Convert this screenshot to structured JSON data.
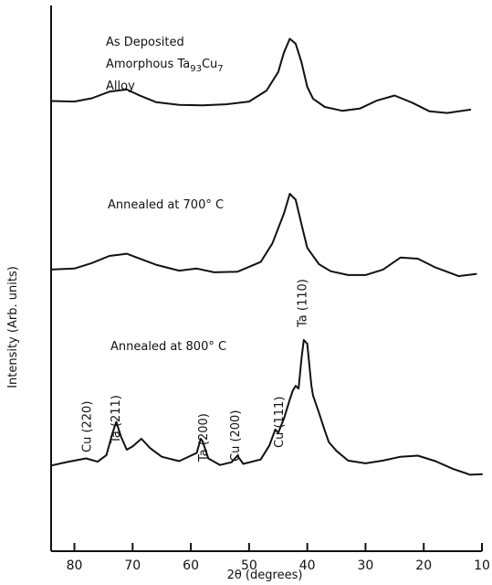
{
  "chart_data": {
    "type": "line",
    "xlabel": "2θ (degrees)",
    "ylabel": "Intensity (Arb. units)",
    "xlim": [
      84,
      10
    ],
    "x_reversed": true,
    "x_ticks": [
      80,
      70,
      60,
      50,
      40,
      30,
      20,
      10
    ],
    "ylim": [
      0,
      100
    ],
    "y_ticks_shown": false,
    "grid": false,
    "series": [
      {
        "title_lines": [
          "As Deposited",
          "Amorphous Ta",
          "Alloy"
        ],
        "title_sub_1": "93",
        "title_mid_1": "Cu",
        "title_sub_2": "7",
        "x": [
          84,
          80,
          77,
          74,
          71,
          69,
          66,
          62,
          58,
          54,
          50,
          47,
          45,
          44,
          43,
          42,
          41,
          40,
          39,
          37,
          34,
          31,
          28,
          25,
          22,
          19,
          16,
          12
        ],
        "y": [
          82.5,
          82.4,
          83.0,
          84.2,
          84.6,
          83.6,
          82.3,
          81.8,
          81.7,
          81.9,
          82.4,
          84.4,
          87.8,
          91.4,
          93.9,
          93.0,
          89.6,
          85.1,
          82.9,
          81.4,
          80.7,
          81.1,
          82.6,
          83.5,
          82.2,
          80.6,
          80.3,
          80.9
        ]
      },
      {
        "title_lines": [
          "Annealed at 700° C"
        ],
        "x": [
          84,
          80,
          77,
          74,
          71,
          69,
          66,
          62,
          59,
          56,
          52,
          48,
          46,
          44,
          43,
          42,
          41,
          40,
          38,
          36,
          33,
          30,
          27,
          24,
          21,
          18,
          14,
          11
        ],
        "y": [
          51.6,
          51.8,
          52.8,
          54.1,
          54.5,
          53.7,
          52.5,
          51.4,
          51.8,
          51.1,
          51.2,
          53.0,
          56.4,
          61.9,
          65.5,
          64.4,
          59.9,
          55.6,
          52.6,
          51.3,
          50.6,
          50.6,
          51.6,
          53.8,
          53.6,
          52.0,
          50.4,
          50.8
        ]
      },
      {
        "title_lines": [
          "Annealed at 800° C"
        ],
        "x": [
          84,
          81,
          78,
          76,
          74.5,
          73.5,
          72.8,
          72,
          71,
          70,
          68.5,
          67,
          65,
          62,
          59,
          58.3,
          58,
          57,
          55,
          53,
          52,
          51,
          48,
          46.5,
          45.5,
          45,
          44,
          43,
          42.5,
          42,
          41.5,
          41,
          40.6,
          40,
          39.3,
          39,
          38,
          37,
          36.3,
          35,
          33,
          30,
          27,
          24,
          21,
          18,
          15,
          12,
          10
        ],
        "y": [
          15.7,
          16.4,
          17.0,
          16.4,
          17.6,
          21.5,
          23.7,
          21.0,
          18.6,
          19.2,
          20.6,
          18.9,
          17.3,
          16.5,
          18.0,
          20.6,
          20.2,
          17.0,
          15.8,
          16.3,
          17.5,
          16.0,
          16.8,
          19.4,
          22.3,
          21.7,
          24.3,
          27.8,
          29.4,
          30.3,
          29.8,
          35.3,
          38.7,
          38.0,
          30.4,
          28.5,
          25.4,
          22.1,
          20.0,
          18.4,
          16.6,
          16.1,
          16.6,
          17.3,
          17.5,
          16.5,
          15.1,
          14.0,
          14.1
        ]
      }
    ],
    "annotations": [
      {
        "text": "Cu (220)",
        "x": 78
      },
      {
        "text": "Ta (211)",
        "x": 73
      },
      {
        "text": "Ta (200)",
        "x": 58
      },
      {
        "text": "Cu (200)",
        "x": 52.5
      },
      {
        "text": "Cu (111)",
        "x": 45
      },
      {
        "text": "Ta (110)",
        "x": 41
      }
    ]
  }
}
